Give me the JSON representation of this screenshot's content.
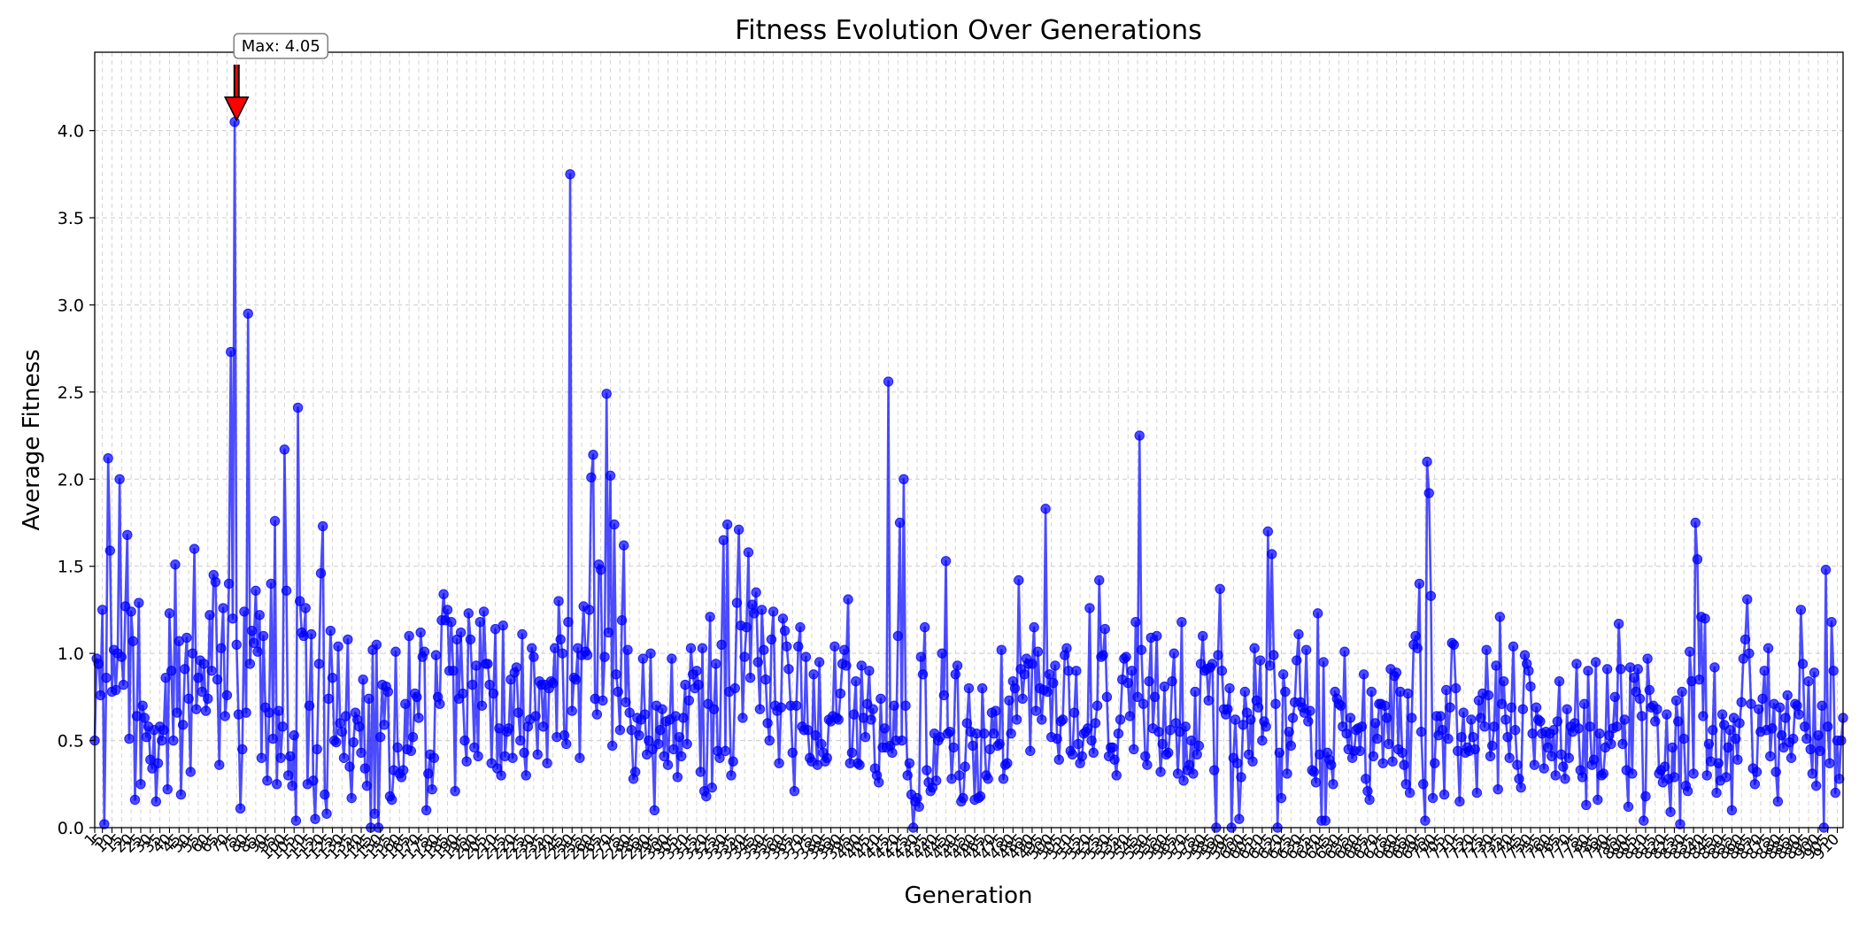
{
  "chart_data": {
    "type": "line",
    "title": "Fitness Evolution Over Generations",
    "xlabel": "Generation",
    "ylabel": "Average Fitness",
    "xlim": [
      0,
      1000
    ],
    "ylim": [
      0,
      4.45
    ],
    "yticks": [
      0.0,
      0.5,
      1.0,
      1.5,
      2.0,
      2.5,
      3.0,
      3.5,
      4.0
    ],
    "ytick_labels": [
      "0.0",
      "0.5",
      "1.0",
      "1.5",
      "2.0",
      "2.5",
      "3.0",
      "3.5",
      "4.0"
    ],
    "xtick_step": 5,
    "grid": true,
    "series": [
      {
        "color": "#0000ff",
        "marker": "circle",
        "values": [
          0.5,
          0.97,
          0.94,
          0.76,
          1.25,
          0.02,
          0.86,
          2.12,
          1.59,
          0.78,
          1.02,
          0.79,
          1.0,
          2.0,
          0.98,
          0.82,
          1.27,
          1.68,
          0.51,
          1.24,
          1.07,
          0.16,
          0.64,
          1.29,
          0.25,
          0.7,
          0.63,
          0.52,
          0.58,
          0.39,
          0.34,
          0.56,
          0.15,
          0.37,
          0.58,
          0.5,
          0.56,
          0.86,
          0.22,
          1.23,
          0.9,
          0.5,
          1.51,
          0.66,
          1.07,
          0.19,
          0.59,
          0.91,
          1.09,
          0.74,
          0.32,
          1.0,
          1.6,
          0.68,
          0.86,
          0.96,
          0.78,
          0.94,
          0.67,
          0.74,
          1.22,
          0.9,
          1.45,
          1.41,
          0.85,
          0.36,
          1.03,
          1.26,
          0.64,
          0.76,
          1.4,
          2.73,
          1.2,
          4.05,
          1.05,
          0.65,
          0.11,
          0.45,
          1.24,
          0.66,
          2.95,
          0.94,
          1.13,
          1.06,
          1.36,
          1.01,
          1.22,
          0.4,
          1.1,
          0.69,
          0.27,
          0.66,
          1.4,
          0.51,
          1.76,
          0.25,
          0.67,
          0.4,
          0.58,
          2.17,
          1.36,
          0.3,
          0.41,
          0.24,
          0.53,
          0.04,
          2.41,
          1.3,
          1.12,
          1.1,
          1.26,
          0.25,
          0.7,
          1.11,
          0.27,
          0.05,
          0.45,
          0.94,
          1.46,
          1.73,
          0.19,
          0.08,
          0.74,
          1.13,
          0.86,
          0.5,
          0.49,
          1.04,
          0.6,
          0.55,
          0.4,
          0.64,
          1.08,
          0.35,
          0.17,
          0.49,
          0.66,
          0.62,
          0.58,
          0.43,
          0.85,
          0.34,
          0.24,
          0.74,
          0.0,
          1.02,
          0.08,
          1.05,
          0.0,
          0.52,
          0.82,
          0.59,
          0.81,
          0.78,
          0.18,
          0.16,
          0.33,
          1.01,
          0.46,
          0.31,
          0.29,
          0.33,
          0.71,
          0.45,
          1.1,
          0.44,
          0.52,
          0.77,
          0.75,
          0.63,
          1.12,
          0.98,
          1.01,
          0.1,
          0.31,
          0.42,
          0.22,
          0.4,
          0.99,
          0.75,
          0.71,
          1.19,
          1.34,
          1.19,
          1.25,
          0.9,
          1.18,
          0.9,
          0.21,
          1.08,
          0.74,
          1.12,
          0.77,
          0.5,
          0.38,
          1.23,
          1.08,
          0.82,
          0.46,
          0.93,
          0.41,
          1.18,
          0.7,
          1.24,
          0.94,
          0.94,
          0.82,
          0.37,
          0.77,
          1.14,
          0.34,
          0.57,
          0.3,
          1.16,
          0.41,
          0.55,
          0.57,
          0.85,
          0.4,
          0.89,
          0.92,
          0.66,
          0.5,
          1.11,
          0.43,
          0.3,
          0.58,
          0.62,
          1.03,
          0.98,
          0.64,
          0.42,
          0.84,
          0.82,
          0.58,
          0.82,
          0.37,
          0.8,
          0.84,
          0.83,
          1.03,
          0.52,
          1.3,
          1.08,
          1.0,
          0.53,
          0.48,
          1.18,
          3.75,
          0.67,
          0.86,
          0.85,
          1.03,
          0.4,
          0.99,
          1.27,
          1.01,
          0.99,
          1.25,
          2.01,
          2.14,
          0.74,
          0.65,
          1.51,
          1.48,
          0.73,
          0.98,
          2.49,
          1.12,
          2.02,
          0.47,
          1.74,
          0.88,
          0.78,
          0.56,
          1.19,
          1.62,
          0.72,
          1.02,
          0.66,
          0.56,
          0.28,
          0.32,
          0.63,
          0.53,
          0.62,
          0.97,
          0.65,
          0.42,
          0.5,
          1.0,
          0.45,
          0.1,
          0.7,
          0.48,
          0.56,
          0.68,
          0.41,
          0.61,
          0.36,
          0.62,
          0.97,
          0.45,
          0.64,
          0.29,
          0.52,
          0.41,
          0.63,
          0.82,
          0.48,
          0.73,
          1.03,
          0.88,
          0.8,
          0.9,
          0.82,
          0.32,
          1.03,
          0.21,
          0.18,
          0.71,
          1.21,
          0.23,
          0.68,
          0.94,
          0.44,
          0.4,
          1.05,
          1.65,
          0.44,
          1.74,
          0.78,
          0.3,
          0.38,
          0.8,
          1.29,
          1.71,
          1.16,
          0.63,
          0.98,
          1.15,
          1.58,
          0.86,
          1.28,
          1.23,
          1.35,
          0.95,
          0.68,
          1.25,
          1.02,
          0.85,
          0.6,
          0.5,
          1.08,
          1.24,
          0.7,
          0.67,
          0.37,
          0.69,
          1.2,
          1.13,
          1.04,
          0.91,
          0.7,
          0.43,
          0.21,
          0.7,
          1.04,
          1.15,
          0.58,
          0.56,
          0.98,
          0.56,
          0.4,
          0.38,
          0.88,
          0.53,
          0.36,
          0.95,
          0.48,
          0.43,
          0.38,
          0.4,
          0.62,
          0.61,
          0.64,
          1.04,
          0.63,
          0.62,
          0.77,
          0.94,
          1.02,
          0.93,
          1.31,
          0.37,
          0.43,
          0.65,
          0.84,
          0.37,
          0.36,
          0.93,
          0.63,
          0.52,
          0.71,
          0.9,
          0.62,
          0.68,
          0.34,
          0.3,
          0.26,
          0.74,
          0.46,
          0.57,
          0.46,
          2.56,
          0.47,
          0.43,
          0.7,
          0.5,
          1.1,
          1.75,
          0.5,
          2.0,
          0.7,
          0.3,
          0.37,
          0.19,
          0.0,
          0.15,
          0.17,
          0.12,
          0.98,
          0.88,
          1.15,
          0.33,
          0.26,
          0.21,
          0.23,
          0.54,
          0.27,
          0.5,
          0.52,
          1.0,
          0.76,
          1.53,
          0.54,
          0.55,
          0.28,
          0.46,
          0.88,
          0.93,
          0.3,
          0.15,
          0.17,
          0.35,
          0.6,
          0.8,
          0.55,
          0.47,
          0.16,
          0.54,
          0.17,
          0.18,
          0.8,
          0.54,
          0.3,
          0.28,
          0.45,
          0.66,
          0.54,
          0.67,
          0.47,
          0.48,
          1.02,
          0.28,
          0.36,
          0.37,
          0.73,
          0.54,
          0.84,
          0.8,
          0.62,
          1.42,
          0.91,
          0.74,
          0.88,
          0.97,
          0.94,
          0.44,
          0.94,
          1.15,
          0.67,
          1.01,
          0.8,
          0.62,
          0.79,
          1.83,
          0.78,
          0.88,
          0.52,
          0.83,
          0.93,
          0.51,
          0.39,
          0.61,
          0.62,
          0.99,
          1.03,
          0.9,
          0.44,
          0.42,
          0.66,
          0.9,
          0.48,
          0.37,
          0.41,
          0.54,
          0.55,
          0.57,
          1.26,
          0.5,
          0.43,
          0.6,
          0.7,
          1.42,
          0.98,
          0.99,
          1.14,
          0.75,
          0.41,
          0.46,
          0.46,
          0.39,
          0.3,
          0.54,
          0.62,
          0.85,
          0.97,
          0.98,
          0.83,
          0.64,
          0.9,
          0.45,
          1.18,
          0.75,
          2.25,
          1.02,
          0.71,
          0.41,
          0.36,
          0.84,
          1.09,
          0.57,
          0.75,
          1.1,
          0.55,
          0.32,
          0.48,
          0.81,
          0.42,
          0.43,
          0.56,
          0.84,
          1.0,
          0.6,
          0.31,
          0.55,
          1.18,
          0.27,
          0.58,
          0.33,
          0.36,
          0.5,
          0.31,
          0.78,
          0.42,
          0.47,
          0.94,
          1.1,
          0.9,
          0.91,
          0.73,
          0.92,
          0.94,
          0.33,
          0.0,
          0.99,
          1.37,
          0.9,
          0.68,
          0.65,
          0.68,
          0.8,
          0.0,
          0.4,
          0.62,
          0.37,
          0.05,
          0.29,
          0.59,
          0.78,
          0.66,
          0.42,
          0.62,
          0.38,
          1.03,
          0.73,
          0.69,
          0.96,
          0.5,
          0.61,
          0.58,
          1.7,
          0.93,
          1.57,
          0.99,
          0.71,
          0.0,
          0.43,
          0.17,
          0.88,
          0.78,
          0.31,
          0.55,
          0.47,
          0.63,
          0.72,
          0.96,
          1.11,
          0.72,
          0.69,
          0.66,
          1.02,
          0.61,
          0.67,
          0.33,
          0.32,
          0.26,
          1.23,
          0.42,
          0.04,
          0.95,
          0.04,
          0.43,
          0.39,
          0.36,
          0.25,
          0.78,
          0.74,
          0.71,
          0.7,
          0.58,
          1.01,
          0.54,
          0.45,
          0.63,
          0.4,
          0.44,
          0.56,
          0.57,
          0.44,
          0.58,
          0.88,
          0.28,
          0.21,
          0.16,
          0.78,
          0.41,
          0.6,
          0.51,
          0.71,
          0.71,
          0.37,
          0.7,
          0.63,
          0.48,
          0.91,
          0.38,
          0.87,
          0.89,
          0.45,
          0.78,
          0.43,
          0.36,
          0.25,
          0.77,
          0.2,
          0.63,
          1.05,
          1.1,
          1.03,
          1.4,
          0.55,
          0.25,
          0.04,
          2.1,
          1.92,
          1.33,
          0.17,
          0.37,
          0.64,
          0.53,
          0.64,
          0.56,
          0.19,
          0.79,
          0.51,
          0.69,
          1.06,
          1.05,
          0.8,
          0.44,
          0.15,
          0.52,
          0.66,
          0.43,
          0.46,
          0.44,
          0.62,
          0.52,
          0.45,
          0.2,
          0.73,
          0.63,
          0.77,
          0.58,
          1.02,
          0.76,
          0.41,
          0.47,
          0.58,
          0.93,
          0.22,
          1.21,
          0.71,
          0.84,
          0.62,
          0.52,
          0.4,
          0.69,
          1.04,
          0.56,
          0.36,
          0.28,
          0.23,
          0.68,
          0.99,
          0.94,
          0.9,
          0.81,
          0.54,
          0.36,
          0.69,
          0.62,
          0.61,
          0.54,
          0.34,
          0.55,
          0.46,
          0.54,
          0.41,
          0.56,
          0.3,
          0.61,
          0.84,
          0.42,
          0.35,
          0.28,
          0.68,
          0.4,
          0.58,
          0.55,
          0.6,
          0.94,
          0.57,
          0.33,
          0.29,
          0.71,
          0.13,
          0.9,
          0.58,
          0.36,
          0.39,
          0.95,
          0.16,
          0.54,
          0.3,
          0.31,
          0.46,
          0.91,
          0.53,
          0.48,
          0.57,
          0.75,
          0.58,
          1.17,
          0.91,
          0.48,
          0.62,
          0.33,
          0.12,
          0.92,
          0.31,
          0.86,
          0.78,
          0.91,
          0.74,
          0.64,
          0.04,
          0.18,
          0.97,
          0.79,
          0.69,
          0.7,
          0.61,
          0.68,
          0.31,
          0.33,
          0.26,
          0.35,
          0.65,
          0.28,
          0.09,
          0.46,
          0.29,
          0.73,
          0.61,
          0.02,
          0.78,
          0.51,
          0.24,
          0.21,
          1.01,
          0.84,
          0.31,
          1.75,
          1.54,
          0.85,
          1.21,
          0.64,
          1.2,
          0.3,
          0.48,
          0.38,
          0.56,
          0.92,
          0.2,
          0.37,
          0.27,
          0.65,
          0.59,
          0.29,
          0.46,
          0.56,
          0.1,
          0.63,
          0.51,
          0.39,
          0.6,
          0.72,
          0.97,
          1.08,
          1.31,
          1.0,
          0.71,
          0.34,
          0.25,
          0.32,
          0.68,
          0.55,
          0.74,
          0.9,
          0.56,
          1.03,
          0.41,
          0.57,
          0.71,
          0.32,
          0.15,
          0.69,
          0.53,
          0.46,
          0.63,
          0.76,
          0.49,
          0.4,
          0.51,
          0.71,
          0.7,
          0.65,
          1.25,
          0.94,
          0.58,
          0.51,
          0.84,
          0.45,
          0.31,
          0.89,
          0.24,
          0.53,
          0.44,
          0.7,
          0.0,
          1.48,
          0.58,
          0.37,
          1.18,
          0.9,
          0.2,
          0.5,
          0.28,
          0.5,
          0.63
        ]
      }
    ],
    "annotations": [
      {
        "text": "Max: 4.05",
        "x": 74,
        "y": 4.05,
        "arrow_color": "#ff0000"
      }
    ]
  }
}
